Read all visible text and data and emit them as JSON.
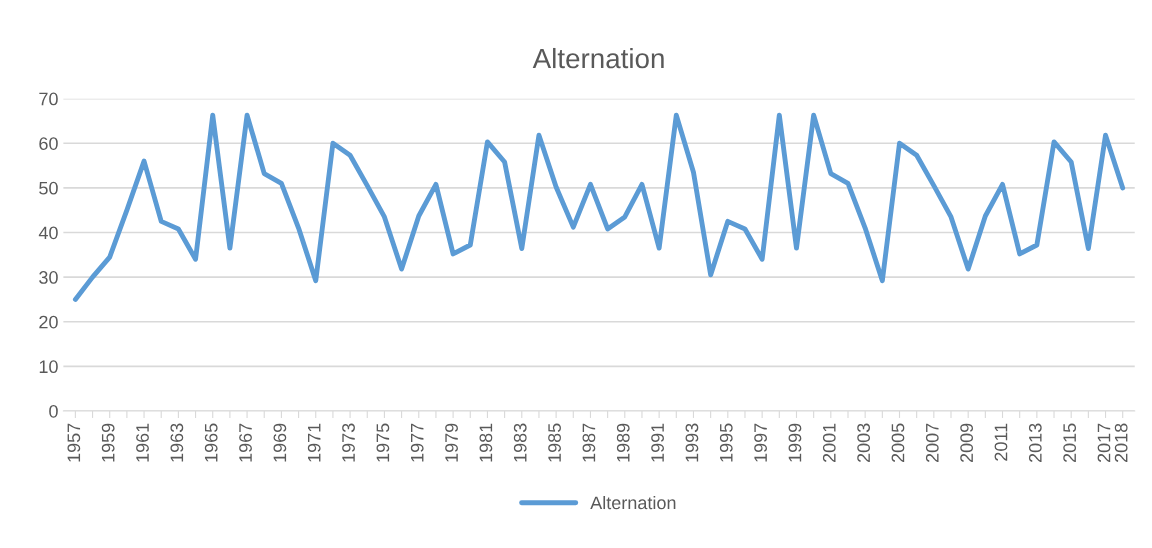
{
  "chart_data": {
    "type": "line",
    "title": "Alternation",
    "categories": [
      "1957",
      null,
      "1959",
      null,
      "1961",
      null,
      "1963",
      null,
      "1965",
      null,
      "1967",
      null,
      "1969",
      null,
      "1971",
      null,
      "1973",
      null,
      "1975",
      null,
      "1977",
      null,
      "1979",
      null,
      "1981",
      null,
      "1983",
      null,
      "1985",
      null,
      "1987",
      null,
      "1989",
      null,
      "1991",
      null,
      "1993",
      null,
      "1995",
      null,
      "1997",
      null,
      "1999",
      null,
      "2001",
      null,
      "2003",
      null,
      "2005",
      null,
      "2007",
      null,
      "2009",
      null,
      "2011",
      null,
      "2013",
      null,
      "2015",
      null,
      "2017",
      "2018"
    ],
    "series": [
      {
        "name": "Alternation",
        "color": "#5b9bd5",
        "values": [
          25,
          30,
          34.5,
          45,
          56,
          42.5,
          40.8,
          34,
          66.3,
          36.5,
          66.3,
          53.2,
          51,
          41,
          29.2,
          60,
          57.3,
          50.5,
          43.5,
          31.8,
          43.7,
          50.8,
          35.2,
          37.2,
          60.3,
          55.8,
          36.4,
          61.8,
          50.2,
          41.2,
          50.8,
          40.8,
          43.5,
          50.8,
          36.5,
          66.3,
          53.5,
          30.5,
          42.5,
          40.8,
          34,
          66.3,
          36.5,
          66.3,
          53.2,
          51,
          41,
          29.2,
          60,
          57.3,
          50.5,
          43.5,
          31.8,
          43.7,
          50.8,
          35.2,
          37.2,
          60.3,
          55.8,
          36.4,
          61.8,
          50
        ]
      }
    ],
    "ylim": [
      0,
      70
    ],
    "yticks": [
      0,
      10,
      20,
      30,
      40,
      50,
      60,
      70
    ],
    "grid": "y",
    "legend": "bottom",
    "marker": "none",
    "line_style": "solid"
  }
}
